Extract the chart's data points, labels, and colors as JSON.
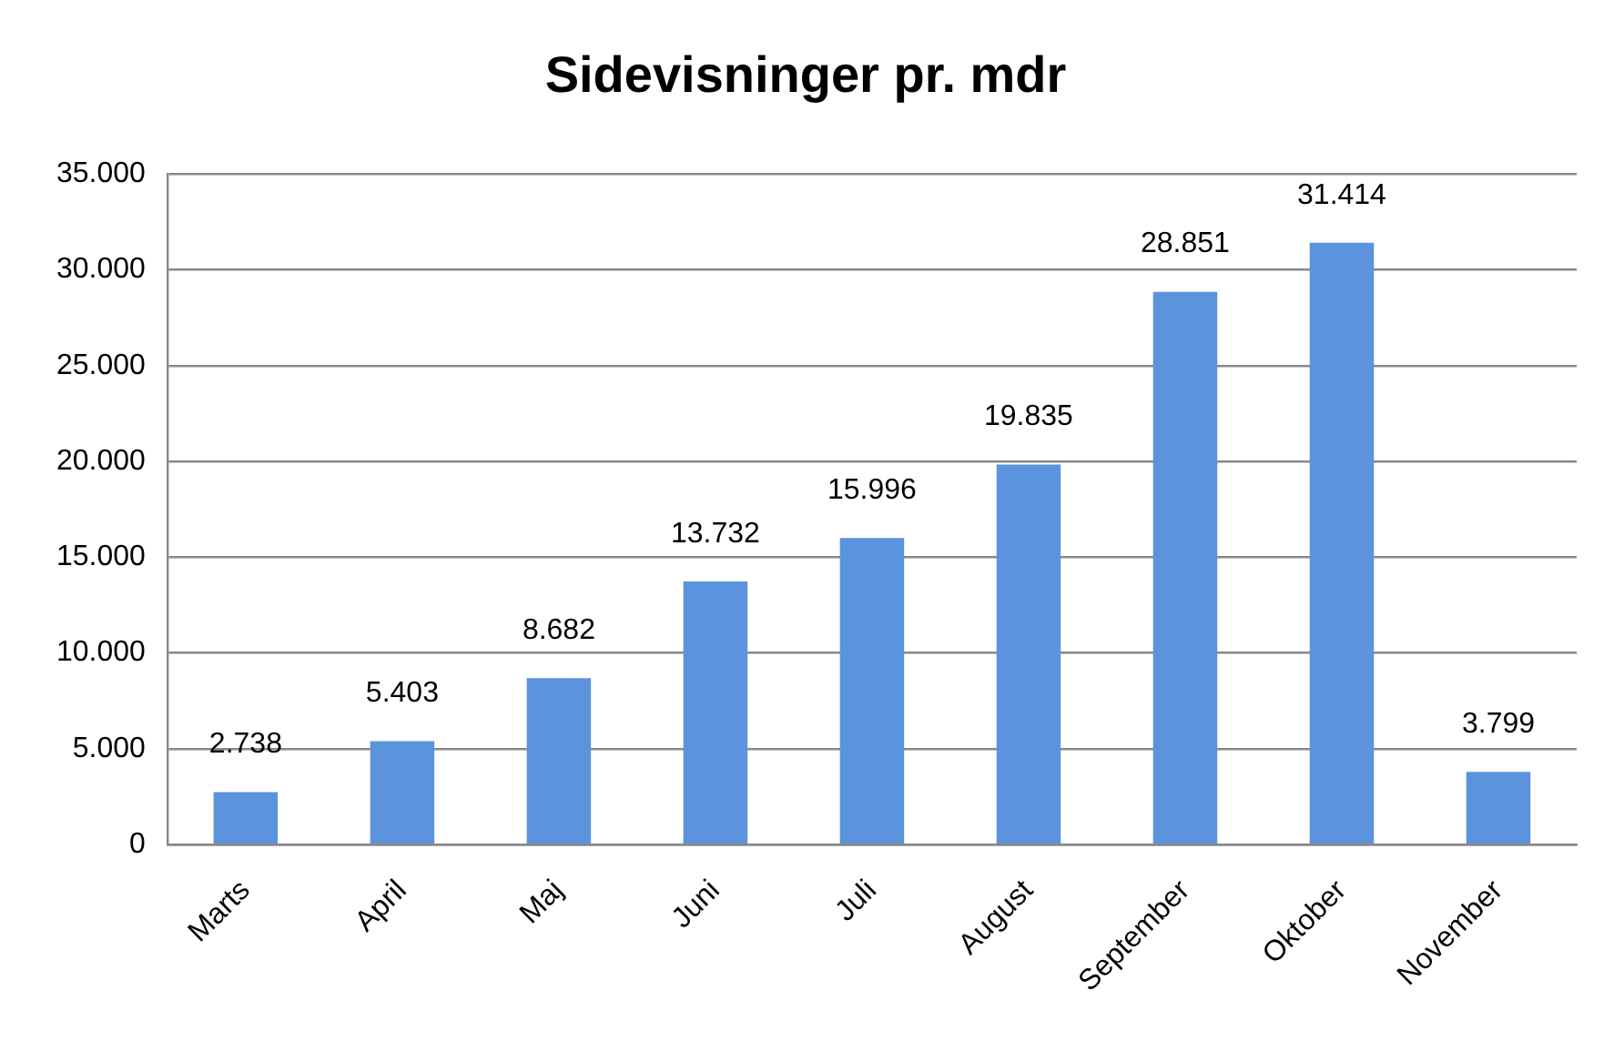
{
  "chart_data": {
    "type": "bar",
    "title": "Sidevisninger pr. mdr",
    "categories": [
      "Marts",
      "April",
      "Maj",
      "Juni",
      "Juli",
      "August",
      "September",
      "Oktober",
      "November"
    ],
    "values": [
      2738,
      5403,
      8682,
      13732,
      15996,
      19835,
      28851,
      31414,
      3799
    ],
    "value_labels": [
      "2.738",
      "5.403",
      "8.682",
      "13.732",
      "15.996",
      "19.835",
      "28.851",
      "31.414",
      "3.799"
    ],
    "color": "#5b93dc",
    "ylim": [
      0,
      35000
    ],
    "yticks": [
      0,
      {
        "value": 5000,
        "label": "5.000"
      },
      {
        "value": 10000,
        "label": "10.000"
      },
      {
        "value": 15000,
        "label": "15.000"
      },
      {
        "value": 20000,
        "label": "20.000"
      },
      {
        "value": 25000,
        "label": "25.000"
      },
      {
        "value": 30000,
        "label": "30.000"
      },
      {
        "value": 35000,
        "label": "35.000"
      }
    ],
    "grid": "y",
    "legend": false
  }
}
